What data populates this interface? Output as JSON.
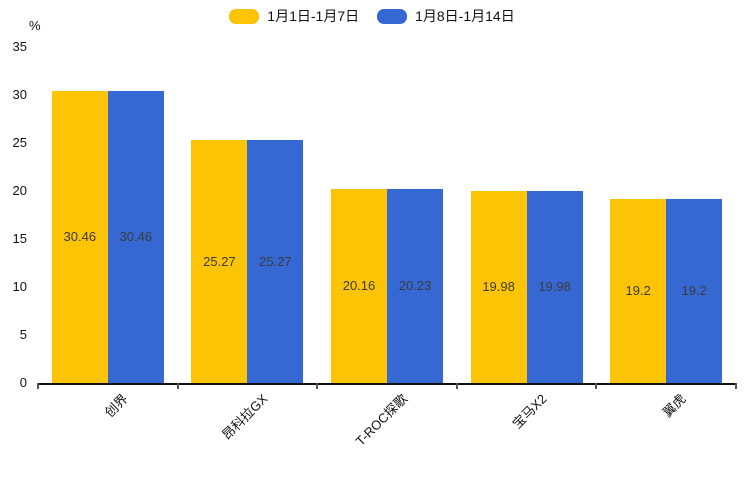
{
  "chart_data": {
    "type": "bar",
    "title": "",
    "ylabel": "%",
    "xlabel": "",
    "categories": [
      "创界",
      "昂科拉GX",
      "T-ROC探歌",
      "宝马X2",
      "翼虎"
    ],
    "series": [
      {
        "name": "1月1日-1月7日",
        "color": "#FCC404",
        "values": [
          30.46,
          25.27,
          20.16,
          19.98,
          19.2
        ]
      },
      {
        "name": "1月8日-1月14日",
        "color": "#3568D3",
        "values": [
          30.46,
          25.27,
          20.23,
          19.98,
          19.2
        ]
      }
    ],
    "ylim": [
      0,
      35
    ],
    "yticks": [
      0,
      5,
      10,
      15,
      20,
      25,
      30,
      35
    ],
    "legend_position": "top",
    "grid": false,
    "value_label_position": "inside-center",
    "value_label_color": "#3c3c3c",
    "axis_color": "#111111",
    "xtick_rotation_deg": 45
  }
}
